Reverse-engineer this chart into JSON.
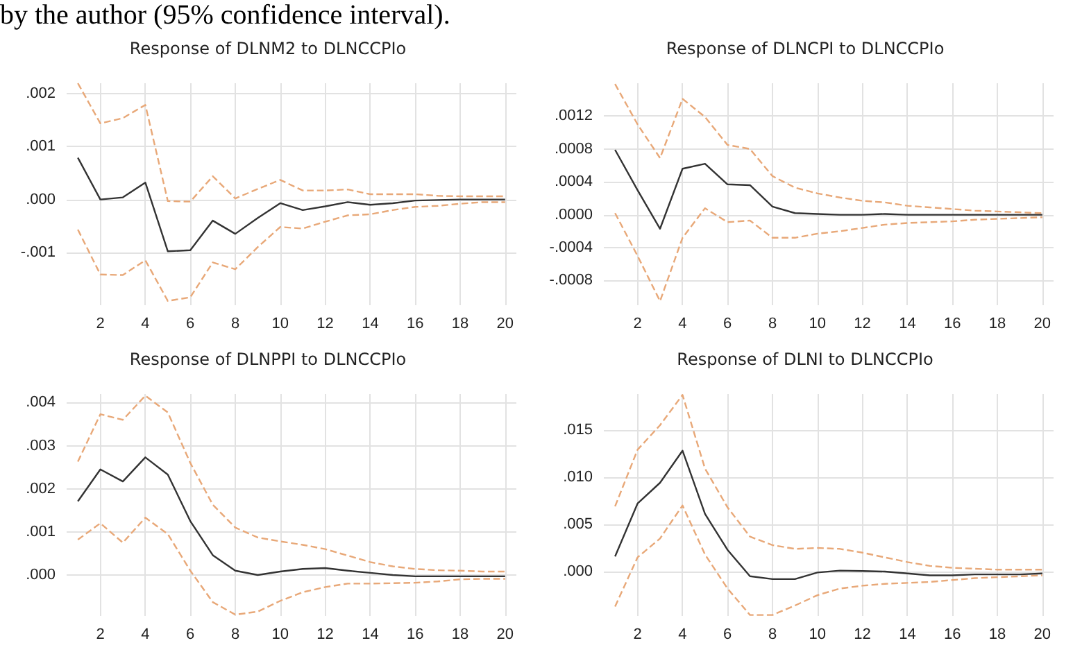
{
  "chart_data": [
    {
      "type": "line",
      "title": "Response of DLNM2 to DLNCCPIo",
      "annotations": [
        "by the author (95% confidence interval)."
      ],
      "x": [
        1,
        2,
        3,
        4,
        5,
        6,
        7,
        8,
        9,
        10,
        11,
        12,
        13,
        14,
        15,
        16,
        17,
        18,
        19,
        20
      ],
      "series": [
        {
          "color": "#333333",
          "line_style": "solid",
          "values": [
            0.00079,
            0.0,
            4e-05,
            0.00032,
            -0.00098,
            -0.00096,
            -0.0004,
            -0.00065,
            -0.00035,
            -7e-05,
            -0.0002,
            -0.00013,
            -5e-05,
            -0.0001,
            -7e-05,
            -2e-05,
            -1e-05,
            0.0,
            0.0,
            0.0
          ]
        },
        {
          "color": "#e8a878",
          "line_style": "dashed",
          "values": [
            0.0022,
            0.00144,
            0.00154,
            0.00179,
            -3e-05,
            -4e-05,
            0.00044,
            2e-05,
            0.0002,
            0.00037,
            0.00017,
            0.00017,
            0.00019,
            0.0001,
            0.0001,
            0.0001,
            7e-05,
            6e-05,
            6e-05,
            6e-05
          ]
        },
        {
          "color": "#e8a878",
          "line_style": "dashed",
          "values": [
            -0.00057,
            -0.00142,
            -0.00143,
            -0.00115,
            -0.00192,
            -0.00185,
            -0.00119,
            -0.00132,
            -0.0009,
            -0.00052,
            -0.00055,
            -0.00042,
            -0.0003,
            -0.00028,
            -0.0002,
            -0.00014,
            -0.00012,
            -8e-05,
            -5e-05,
            -5e-05
          ]
        }
      ],
      "xlim": [
        0.5,
        20.5
      ],
      "xticks": [
        2,
        4,
        6,
        8,
        10,
        12,
        14,
        16,
        18,
        20
      ],
      "ylim": [
        -0.002,
        0.0022
      ],
      "yticks": [
        {
          "value": -0.001,
          "label": "-.001"
        },
        {
          "value": 0,
          "label": ".000"
        },
        {
          "value": 0.001,
          "label": ".001"
        },
        {
          "value": 0.002,
          "label": ".002"
        }
      ],
      "grid": true
    },
    {
      "type": "line",
      "title": "Response of DLNCPI to DLNCCPIo",
      "x": [
        1,
        2,
        3,
        4,
        5,
        6,
        7,
        8,
        9,
        10,
        11,
        12,
        13,
        14,
        15,
        16,
        17,
        18,
        19,
        20
      ],
      "series": [
        {
          "color": "#333333",
          "line_style": "solid",
          "values": [
            0.00079,
            0.0003,
            -0.00017,
            0.00056,
            0.00062,
            0.00037,
            0.00036,
            0.0001,
            2e-05,
            1e-05,
            0.0,
            0.0,
            1e-05,
            0.0,
            0.0,
            0.0,
            0.0,
            0.0,
            0.0,
            0.0
          ]
        },
        {
          "color": "#e8a878",
          "line_style": "dashed",
          "values": [
            0.00159,
            0.0011,
            0.00069,
            0.00141,
            0.00119,
            0.00085,
            0.0008,
            0.00047,
            0.00033,
            0.00026,
            0.00021,
            0.00017,
            0.00015,
            0.00011,
            9e-05,
            7e-05,
            5e-05,
            4e-05,
            3e-05,
            2e-05
          ]
        },
        {
          "color": "#e8a878",
          "line_style": "dashed",
          "values": [
            2e-05,
            -0.0005,
            -0.00105,
            -0.00028,
            8e-05,
            -9e-05,
            -7e-05,
            -0.00028,
            -0.00028,
            -0.00023,
            -0.0002,
            -0.00016,
            -0.00012,
            -0.0001,
            -9e-05,
            -8e-05,
            -6e-05,
            -5e-05,
            -4e-05,
            -3e-05
          ]
        }
      ],
      "xlim": [
        0.5,
        20.5
      ],
      "xticks": [
        2,
        4,
        6,
        8,
        10,
        12,
        14,
        16,
        18,
        20
      ],
      "ylim": [
        -0.0011,
        0.0016
      ],
      "yticks": [
        {
          "value": -0.0008,
          "label": "-.0008"
        },
        {
          "value": -0.0004,
          "label": "-.0004"
        },
        {
          "value": 0,
          "label": ".0000"
        },
        {
          "value": 0.0004,
          "label": ".0004"
        },
        {
          "value": 0.0008,
          "label": ".0008"
        },
        {
          "value": 0.0012,
          "label": ".0012"
        }
      ],
      "grid": true
    },
    {
      "type": "line",
      "title": "Response of DLNPPI to DLNCCPIo",
      "x": [
        1,
        2,
        3,
        4,
        5,
        6,
        7,
        8,
        9,
        10,
        11,
        12,
        13,
        14,
        15,
        16,
        17,
        18,
        19,
        20
      ],
      "series": [
        {
          "color": "#333333",
          "line_style": "solid",
          "values": [
            0.00171,
            0.00245,
            0.00217,
            0.00273,
            0.00233,
            0.00125,
            0.00046,
            0.0001,
            0.0,
            8e-05,
            0.00014,
            0.00016,
            0.0001,
            5e-05,
            0.0,
            -3e-05,
            -3e-05,
            -3e-05,
            -3e-05,
            -3e-05
          ]
        },
        {
          "color": "#e8a878",
          "line_style": "dashed",
          "values": [
            0.00263,
            0.00373,
            0.0036,
            0.00416,
            0.00377,
            0.0026,
            0.00163,
            0.0011,
            0.00087,
            0.00078,
            0.0007,
            0.0006,
            0.00045,
            0.0003,
            0.0002,
            0.00014,
            0.00011,
            0.0001,
            8e-05,
            8e-05
          ]
        },
        {
          "color": "#e8a878",
          "line_style": "dashed",
          "values": [
            0.00082,
            0.0012,
            0.00075,
            0.00133,
            0.00095,
            0.0001,
            -0.00063,
            -0.00092,
            -0.00085,
            -0.0006,
            -0.0004,
            -0.00028,
            -0.0002,
            -0.0002,
            -0.00019,
            -0.00018,
            -0.00015,
            -0.0001,
            -9e-05,
            -9e-05
          ]
        }
      ],
      "xlim": [
        0.5,
        20.5
      ],
      "xticks": [
        2,
        4,
        6,
        8,
        10,
        12,
        14,
        16,
        18,
        20
      ],
      "ylim": [
        -0.00095,
        0.0042
      ],
      "yticks": [
        {
          "value": 0,
          "label": ".000"
        },
        {
          "value": 0.001,
          "label": ".001"
        },
        {
          "value": 0.002,
          "label": ".002"
        },
        {
          "value": 0.003,
          "label": ".003"
        },
        {
          "value": 0.004,
          "label": ".004"
        }
      ],
      "grid": true
    },
    {
      "type": "line",
      "title": "Response of DLNI to DLNCCPIo",
      "x": [
        1,
        2,
        3,
        4,
        5,
        6,
        7,
        8,
        9,
        10,
        11,
        12,
        13,
        14,
        15,
        16,
        17,
        18,
        19,
        20
      ],
      "series": [
        {
          "color": "#333333",
          "line_style": "solid",
          "values": [
            0.0016,
            0.0072,
            0.0094,
            0.0128,
            0.0061,
            0.0023,
            -0.0005,
            -0.0008,
            -0.0008,
            -0.0001,
            0.0001,
            5e-05,
            0.0,
            -0.0002,
            -0.0004,
            -0.0004,
            -0.0003,
            -0.0003,
            -0.0003,
            -0.0002
          ]
        },
        {
          "color": "#e8a878",
          "line_style": "dashed",
          "values": [
            0.0069,
            0.0129,
            0.0155,
            0.0187,
            0.0109,
            0.0068,
            0.0037,
            0.0028,
            0.0024,
            0.0025,
            0.0024,
            0.002,
            0.0015,
            0.001,
            0.0006,
            0.0004,
            0.0003,
            0.0002,
            0.0002,
            0.0002
          ]
        },
        {
          "color": "#e8a878",
          "line_style": "dashed",
          "values": [
            -0.0037,
            0.0015,
            0.0035,
            0.007,
            0.0018,
            -0.0018,
            -0.0046,
            -0.0046,
            -0.0036,
            -0.0025,
            -0.0018,
            -0.0015,
            -0.0013,
            -0.0012,
            -0.0011,
            -0.0009,
            -0.0007,
            -0.0006,
            -0.0005,
            -0.0004
          ]
        }
      ],
      "xlim": [
        0.5,
        20.5
      ],
      "xticks": [
        2,
        4,
        6,
        8,
        10,
        12,
        14,
        16,
        18,
        20
      ],
      "ylim": [
        -0.0047,
        0.0188
      ],
      "yticks": [
        {
          "value": 0,
          "label": ".000"
        },
        {
          "value": 0.005,
          "label": ".005"
        },
        {
          "value": 0.01,
          "label": ".010"
        },
        {
          "value": 0.015,
          "label": ".015"
        }
      ],
      "grid": true
    }
  ]
}
